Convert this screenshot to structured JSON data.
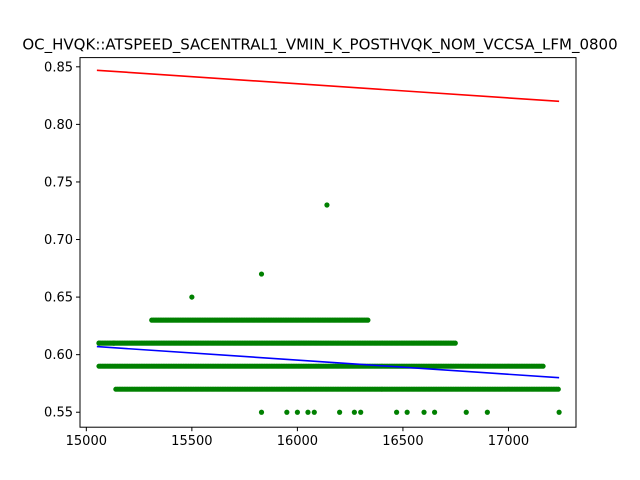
{
  "chart_data": {
    "type": "scatter",
    "title": "OC_HVQK::ATSPEED_SACENTRAL1_VMIN_K_POSTHVQK_NOM_VCCSA_LFM_0800",
    "xlabel": "",
    "ylabel": "",
    "xlim": [
      14970,
      17320
    ],
    "ylim": [
      0.537,
      0.858
    ],
    "x_ticks": [
      15000,
      15500,
      16000,
      16500,
      17000
    ],
    "y_ticks": [
      0.55,
      0.6,
      0.65,
      0.7,
      0.75,
      0.8,
      0.85
    ],
    "x_tick_labels": [
      "15000",
      "15500",
      "16000",
      "16500",
      "17000"
    ],
    "y_tick_labels": [
      "0.55",
      "0.60",
      "0.65",
      "0.70",
      "0.75",
      "0.80",
      "0.85"
    ],
    "grid": false,
    "legend": "none",
    "point_color": "#008000",
    "scatter_bands": [
      {
        "y": 0.63,
        "x_start": 15310,
        "x_end": 16340
      },
      {
        "y": 0.61,
        "x_start": 15060,
        "x_end": 16750
      },
      {
        "y": 0.59,
        "x_start": 15060,
        "x_end": 17170
      },
      {
        "y": 0.57,
        "x_start": 15140,
        "x_end": 17240
      }
    ],
    "outliers": [
      {
        "x": 16140,
        "y": 0.73
      },
      {
        "x": 15830,
        "y": 0.67
      },
      {
        "x": 15500,
        "y": 0.65
      },
      {
        "x": 15060,
        "y": 0.61
      },
      {
        "x": 15130,
        "y": 0.61
      },
      {
        "x": 15830,
        "y": 0.55
      },
      {
        "x": 15950,
        "y": 0.55
      },
      {
        "x": 16000,
        "y": 0.55
      },
      {
        "x": 16050,
        "y": 0.55
      },
      {
        "x": 16080,
        "y": 0.55
      },
      {
        "x": 16200,
        "y": 0.55
      },
      {
        "x": 16270,
        "y": 0.55
      },
      {
        "x": 16300,
        "y": 0.55
      },
      {
        "x": 16470,
        "y": 0.55
      },
      {
        "x": 16520,
        "y": 0.55
      },
      {
        "x": 16600,
        "y": 0.55
      },
      {
        "x": 16650,
        "y": 0.55
      },
      {
        "x": 16800,
        "y": 0.55
      },
      {
        "x": 16900,
        "y": 0.55
      },
      {
        "x": 17240,
        "y": 0.55
      }
    ],
    "lines": [
      {
        "color": "#ff0000",
        "x": [
          15050,
          17240
        ],
        "y": [
          0.847,
          0.82
        ]
      },
      {
        "color": "#0000ff",
        "x": [
          15050,
          17240
        ],
        "y": [
          0.607,
          0.58
        ]
      }
    ]
  }
}
